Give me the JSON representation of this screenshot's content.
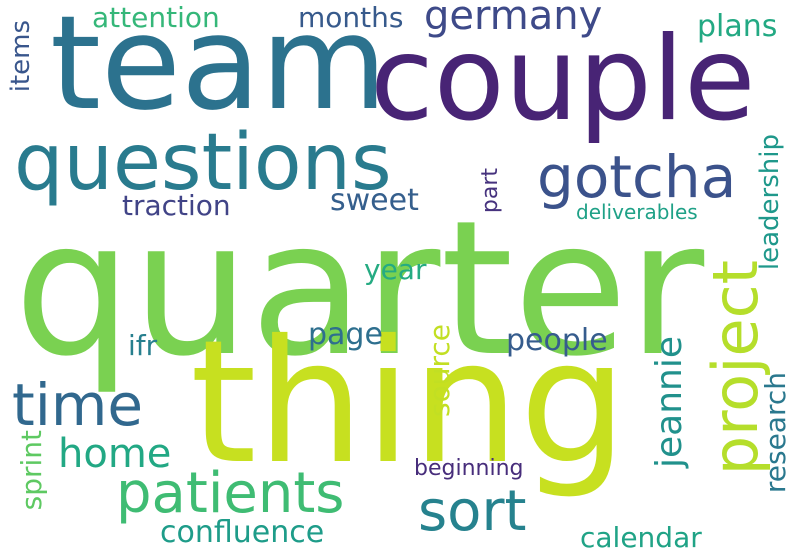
{
  "words": {
    "quarter": "quarter",
    "thing": "thing",
    "team": "team",
    "couple": "couple",
    "questions": "questions",
    "gotcha": "gotcha",
    "project": "project",
    "patients": "patients",
    "sort": "sort",
    "time": "time",
    "home": "home",
    "jeannie": "jeannie",
    "germany": "germany",
    "attention": "attention",
    "months": "months",
    "plans": "plans",
    "items": "items",
    "leadership": "leadership",
    "traction": "traction",
    "sweet": "sweet",
    "part": "part",
    "deliverables": "deliverables",
    "year": "year",
    "page": "page",
    "people": "people",
    "ifr": "ifr",
    "source": "source",
    "research": "research",
    "beginning": "beginning",
    "sprint": "sprint",
    "confluence": "confluence",
    "calendar": "calendar"
  },
  "colors": {
    "quarter": "#7ad151",
    "thing": "#c7e020",
    "team": "#2c728e",
    "couple": "#482475",
    "questions": "#297b8e",
    "gotcha": "#3b528b",
    "project": "#b5de2b",
    "patients": "#3fbc73",
    "sort": "#26828e",
    "time": "#31688e",
    "home": "#22a884",
    "jeannie": "#21918c",
    "germany": "#3e4a89",
    "attention": "#35b779",
    "months": "#375a8c",
    "plans": "#23a983",
    "items": "#39568c",
    "leadership": "#1f988b",
    "traction": "#414487",
    "sweet": "#355f8d",
    "part": "#46327e",
    "deliverables": "#1fa187",
    "year": "#25ab82",
    "page": "#2e6f8e",
    "people": "#365c8d",
    "ifr": "#277f8e",
    "source": "#c2df23",
    "research": "#2a788e",
    "beginning": "#472d7b",
    "sprint": "#5ec962",
    "confluence": "#1e9c89",
    "calendar": "#20a386"
  }
}
